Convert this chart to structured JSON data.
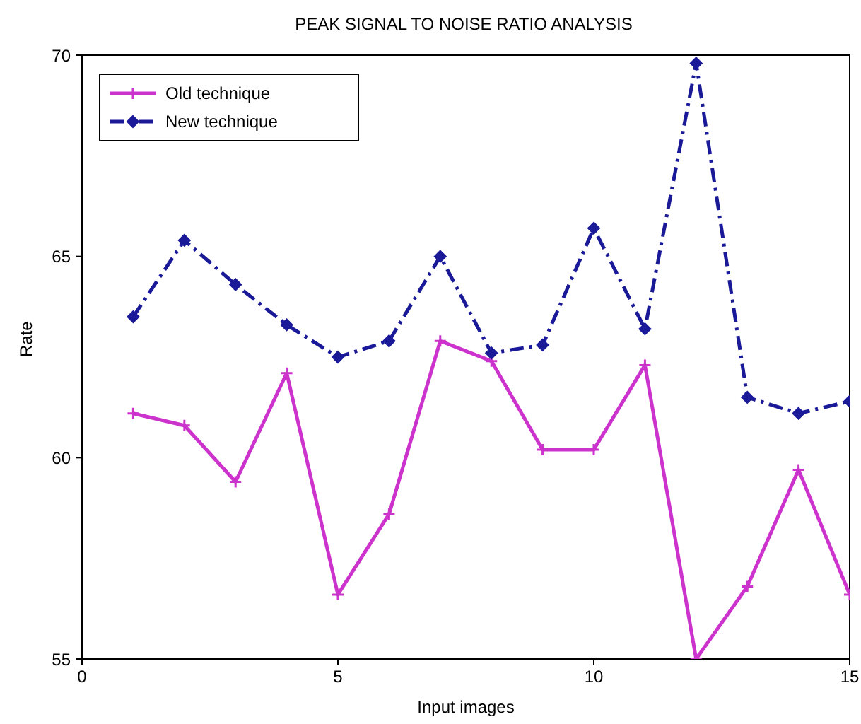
{
  "chart_data": {
    "type": "line",
    "title": "PEAK SIGNAL TO NOISE RATIO ANALYSIS",
    "xlabel": "Input images",
    "ylabel": "Rate",
    "x": [
      1,
      2,
      3,
      4,
      5,
      6,
      7,
      8,
      9,
      10,
      11,
      12,
      13,
      14,
      15
    ],
    "series": [
      {
        "name": "Old technique",
        "color": "#cc33cc",
        "marker": "cross",
        "line_style": "solid",
        "values": [
          61.1,
          60.8,
          59.4,
          62.1,
          56.6,
          58.6,
          62.9,
          62.4,
          60.2,
          60.2,
          62.3,
          55.0,
          56.8,
          59.7,
          56.6
        ]
      },
      {
        "name": "New technique",
        "color": "#1a1a99",
        "marker": "diamond",
        "line_style": "dashdot",
        "values": [
          63.5,
          65.4,
          64.3,
          63.3,
          62.5,
          62.9,
          65.0,
          62.6,
          62.8,
          65.7,
          63.2,
          69.8,
          61.5,
          61.1,
          61.4
        ]
      }
    ],
    "xlim": [
      0,
      15
    ],
    "xticks": [
      0,
      5,
      10,
      15
    ],
    "ylim": [
      55,
      70
    ],
    "yticks": [
      55,
      60,
      65,
      70
    ],
    "grid": false,
    "legend": "top left"
  }
}
